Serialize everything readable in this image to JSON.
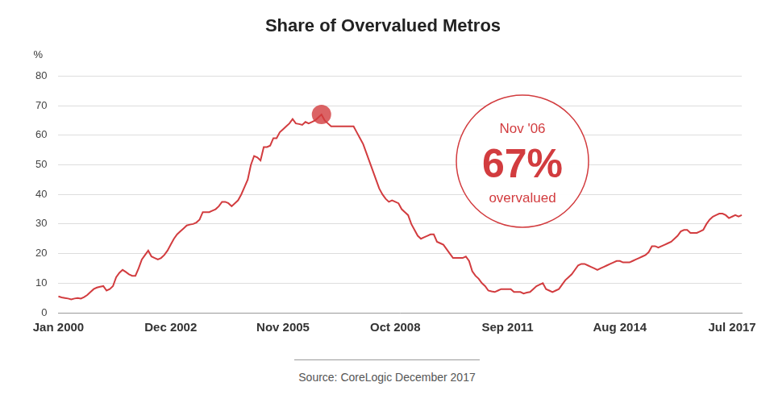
{
  "chart_data": {
    "type": "line",
    "title": "Share of Overvalued Metros",
    "ylabel": "%",
    "source": "Source: CoreLogic December 2017",
    "color": "#d23c3f",
    "grid": true,
    "ylim": [
      0,
      80
    ],
    "yticks": [
      0,
      10,
      20,
      30,
      40,
      50,
      60,
      70,
      80
    ],
    "annotation": {
      "label": "Nov '06",
      "value": 67,
      "value_label": "67%",
      "text": "overvalued"
    },
    "categories": [
      "Jan 2000",
      null,
      null,
      null,
      null,
      null,
      null,
      null,
      null,
      null,
      null,
      null,
      null,
      null,
      null,
      null,
      null,
      null,
      null,
      null,
      null,
      null,
      null,
      null,
      null,
      null,
      null,
      null,
      null,
      null,
      null,
      null,
      null,
      null,
      null,
      "Dec 2002",
      null,
      null,
      null,
      null,
      null,
      null,
      null,
      null,
      null,
      null,
      null,
      null,
      null,
      null,
      null,
      null,
      null,
      null,
      null,
      null,
      null,
      null,
      null,
      null,
      null,
      null,
      null,
      null,
      null,
      null,
      null,
      null,
      null,
      null,
      "Nov 2005",
      null,
      null,
      null,
      null,
      null,
      null,
      null,
      null,
      null,
      null,
      null,
      null,
      null,
      null,
      null,
      null,
      null,
      null,
      null,
      null,
      null,
      null,
      null,
      null,
      null,
      null,
      null,
      null,
      null,
      null,
      null,
      null,
      null,
      null,
      "Oct 2008",
      null,
      null,
      null,
      null,
      null,
      null,
      null,
      null,
      null,
      null,
      null,
      null,
      null,
      null,
      null,
      null,
      null,
      null,
      null,
      null,
      null,
      null,
      null,
      null,
      null,
      null,
      null,
      null,
      null,
      null,
      null,
      null,
      null,
      null,
      "Sep 2011",
      null,
      null,
      null,
      null,
      null,
      null,
      null,
      null,
      null,
      null,
      null,
      null,
      null,
      null,
      null,
      null,
      null,
      null,
      null,
      null,
      null,
      null,
      null,
      null,
      null,
      null,
      null,
      null,
      null,
      null,
      null,
      null,
      null,
      null,
      "Aug 2014",
      null,
      null,
      null,
      null,
      null,
      null,
      null,
      null,
      null,
      null,
      null,
      null,
      null,
      null,
      null,
      null,
      null,
      null,
      null,
      null,
      null,
      null,
      null,
      null,
      null,
      null,
      null,
      null,
      null,
      null,
      null,
      null,
      null,
      null,
      "Jul 2017",
      null,
      null,
      null
    ],
    "values": [
      5.5,
      5.2,
      5,
      4.8,
      4.5,
      4.8,
      5,
      4.8,
      5.3,
      6,
      7,
      8,
      8.5,
      8.8,
      9,
      7.5,
      8,
      9,
      12,
      13.5,
      14.5,
      13.8,
      13,
      12.5,
      12.5,
      15,
      18,
      19.5,
      21,
      19,
      18.5,
      18,
      18.5,
      19.5,
      21,
      23,
      25,
      26.5,
      27.5,
      28.5,
      29.5,
      29.8,
      30,
      30.5,
      31.5,
      34,
      34,
      34,
      34.5,
      35,
      36,
      37.5,
      37.5,
      37,
      36,
      37,
      38,
      40,
      42.5,
      45,
      50,
      53,
      52.5,
      51.5,
      56,
      56,
      56.5,
      59,
      59,
      61,
      62,
      63,
      64,
      65.5,
      64,
      63.8,
      63.5,
      64.5,
      64,
      64.5,
      65,
      66,
      67,
      65,
      64,
      63,
      63,
      63,
      63,
      63,
      63,
      63,
      63,
      61,
      59,
      57,
      54,
      51,
      48,
      45,
      42,
      40,
      38.5,
      37.5,
      38,
      37.5,
      37,
      35,
      34,
      33,
      30,
      28,
      26,
      25,
      25.5,
      26,
      26.5,
      26.5,
      24,
      23.5,
      23,
      21.5,
      20,
      18.5,
      18.5,
      18.5,
      18.5,
      19,
      17.5,
      14,
      12.5,
      11.5,
      10,
      9,
      7.5,
      7.2,
      7,
      7.5,
      8,
      8,
      8,
      8,
      7,
      7,
      7,
      6.5,
      6.8,
      7,
      8,
      9,
      9.5,
      10,
      8,
      7.5,
      7,
      7.5,
      8,
      9.5,
      11,
      12,
      13,
      14.5,
      16,
      16.5,
      16.5,
      16,
      15.5,
      15,
      14.5,
      15,
      15.5,
      16,
      16.5,
      17,
      17.5,
      17.5,
      17,
      17,
      17,
      17.5,
      18,
      18.5,
      19,
      19.5,
      20.5,
      22.5,
      22.5,
      22,
      22.5,
      23,
      23.5,
      24,
      25,
      26,
      27.5,
      28,
      28,
      27,
      27,
      27,
      27.5,
      28,
      30,
      31.5,
      32.5,
      33,
      33.5,
      33.5,
      33,
      32,
      32.5,
      33,
      32.5,
      33
    ]
  }
}
